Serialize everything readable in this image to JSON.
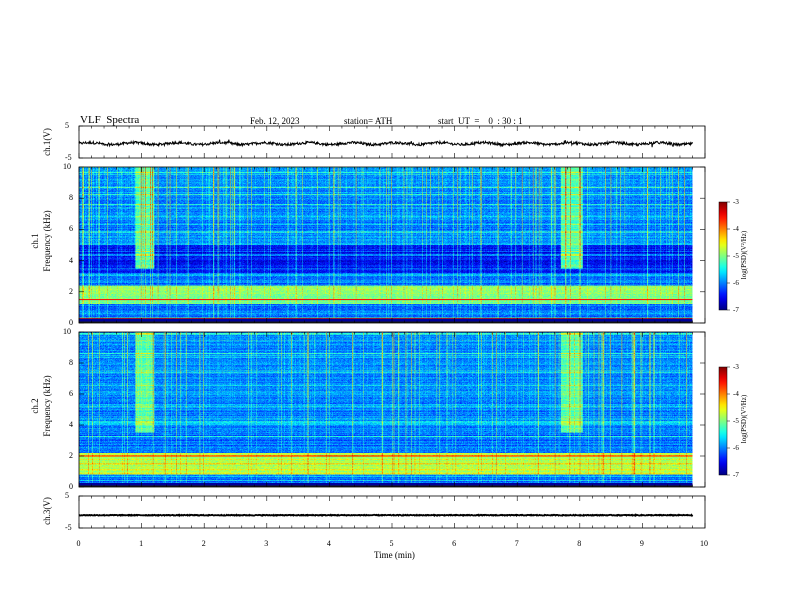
{
  "header": {
    "title": "VLF  Spectra",
    "date": "Feb. 12, 2023",
    "station": "station= ATH",
    "start": "start  UT  =    0  : 30 : 1"
  },
  "chart_data": [
    {
      "type": "line",
      "panel": "ch1-waveform",
      "ylabel": "ch.1(V)",
      "ylim": [
        -5,
        5
      ],
      "yticks": [
        "5",
        "-5"
      ],
      "x_range": [
        0,
        9.8
      ],
      "signal": "noisy waveform around -0.5 V with amplitude about 1 V"
    },
    {
      "type": "heatmap",
      "panel": "ch1-spectrogram",
      "ylabel": "ch.1\nFrequency (kHz)",
      "ylim": [
        0,
        10
      ],
      "yticks": [
        "0",
        "2",
        "4",
        "6",
        "8",
        "10"
      ],
      "x_range": [
        0,
        9.8
      ],
      "colorbar": {
        "label": "log(PSD)(V²/Hz)",
        "ticks": [
          "-3",
          "-4",
          "-5",
          "-6",
          "-7"
        ],
        "range": [
          -7,
          -3
        ]
      },
      "features": [
        {
          "kind": "burst",
          "t_start": 0.9,
          "t_end": 1.2,
          "f_low": 3.5,
          "f_high": 10,
          "level": -5.2
        },
        {
          "kind": "burst",
          "t_start": 7.7,
          "t_end": 8.05,
          "f_low": 3.5,
          "f_high": 10,
          "level": -5.2
        },
        {
          "kind": "quiet-band",
          "f_low": 3.2,
          "f_high": 5.0,
          "level": -6.5
        },
        {
          "kind": "bright-band",
          "f_low": 1.2,
          "f_high": 2.4,
          "level": -5.0
        },
        {
          "kind": "line",
          "f": 1.5,
          "level": -3.5
        },
        {
          "kind": "line",
          "f": 0.3,
          "level": -3.2
        }
      ]
    },
    {
      "type": "heatmap",
      "panel": "ch2-spectrogram",
      "ylabel": "ch.2\nFrequency (kHz)",
      "ylim": [
        0,
        10
      ],
      "yticks": [
        "0",
        "2",
        "4",
        "6",
        "8",
        "10"
      ],
      "x_range": [
        0,
        9.8
      ],
      "colorbar": {
        "label": "log(PSD)(V²/Hz)",
        "ticks": [
          "-3",
          "-4",
          "-5",
          "-6",
          "-7"
        ],
        "range": [
          -7,
          -3
        ]
      },
      "features": [
        {
          "kind": "burst",
          "t_start": 0.9,
          "t_end": 1.2,
          "f_low": 3.5,
          "f_high": 10,
          "level": -5.2
        },
        {
          "kind": "burst",
          "t_start": 7.7,
          "t_end": 8.05,
          "f_low": 3.5,
          "f_high": 10,
          "level": -5.2
        },
        {
          "kind": "bright-band",
          "f_low": 0.8,
          "f_high": 2.2,
          "level": -4.8
        },
        {
          "kind": "line",
          "f": 2.0,
          "level": -3.6
        },
        {
          "kind": "step-line",
          "t_start": 3.8,
          "t_end": 4.8,
          "f": 2.0,
          "level": -3.4
        }
      ]
    },
    {
      "type": "line",
      "panel": "ch3-waveform",
      "ylabel": "ch.3(V)",
      "ylim": [
        -5,
        5
      ],
      "yticks": [
        "5",
        "-5"
      ],
      "xlabel": "Time  (min)",
      "xlim": [
        0,
        10
      ],
      "xticks": [
        "0",
        "1",
        "2",
        "3",
        "4",
        "5",
        "6",
        "7",
        "8",
        "9",
        "10"
      ],
      "x_range": [
        0,
        9.8
      ],
      "signal": "constant at about -1 V with very small ripple"
    }
  ]
}
